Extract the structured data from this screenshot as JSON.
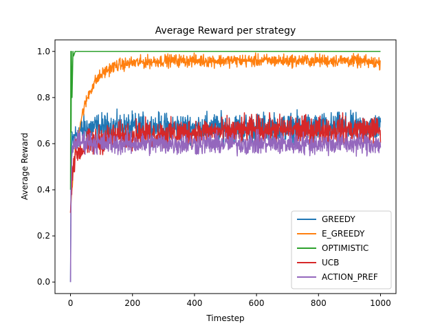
{
  "chart_data": {
    "type": "line",
    "title": "Average Reward per strategy",
    "xlabel": "Timestep",
    "ylabel": "Average Reward",
    "xlim": [
      -50,
      1050
    ],
    "ylim": [
      -0.05,
      1.05
    ],
    "xticks": [
      0,
      200,
      400,
      600,
      800,
      1000
    ],
    "xtick_labels": [
      "0",
      "200",
      "400",
      "600",
      "800",
      "1000"
    ],
    "yticks": [
      0.0,
      0.2,
      0.4,
      0.6,
      0.8,
      1.0
    ],
    "ytick_labels": [
      "0.0",
      "0.2",
      "0.4",
      "0.6",
      "0.8",
      "1.0"
    ],
    "grid": false,
    "legend_position": "lower-right",
    "series": [
      {
        "name": "GREEDY",
        "color": "#1f77b4",
        "x": [
          0,
          2,
          5,
          10,
          20,
          40,
          60,
          80,
          100,
          150,
          200,
          250,
          300,
          350,
          400,
          450,
          500,
          550,
          600,
          650,
          700,
          750,
          800,
          850,
          900,
          950,
          1000
        ],
        "y": [
          0.0,
          0.55,
          0.6,
          0.62,
          0.64,
          0.66,
          0.67,
          0.67,
          0.67,
          0.67,
          0.67,
          0.67,
          0.67,
          0.67,
          0.67,
          0.67,
          0.67,
          0.67,
          0.67,
          0.67,
          0.67,
          0.67,
          0.67,
          0.67,
          0.67,
          0.67,
          0.67
        ],
        "noise": 0.045,
        "max": 0.83
      },
      {
        "name": "E_GREEDY",
        "color": "#ff7f0e",
        "x": [
          0,
          5,
          10,
          20,
          30,
          40,
          50,
          60,
          80,
          100,
          120,
          150,
          200,
          250,
          300,
          400,
          500,
          600,
          700,
          800,
          900,
          1000
        ],
        "y": [
          0.3,
          0.42,
          0.5,
          0.6,
          0.68,
          0.74,
          0.78,
          0.82,
          0.87,
          0.9,
          0.92,
          0.94,
          0.95,
          0.955,
          0.96,
          0.96,
          0.96,
          0.96,
          0.96,
          0.96,
          0.96,
          0.95
        ],
        "noise": 0.02,
        "max": 1.0
      },
      {
        "name": "OPTIMISTIC",
        "color": "#2ca02c",
        "x": [
          0,
          1,
          2,
          3,
          5,
          8,
          10,
          15,
          1000
        ],
        "y": [
          0.4,
          1.0,
          0.65,
          1.0,
          0.8,
          1.0,
          0.98,
          1.0,
          1.0
        ],
        "noise": 0,
        "max": 1.0
      },
      {
        "name": "UCB",
        "color": "#d62728",
        "x": [
          0,
          5,
          10,
          20,
          40,
          60,
          80,
          100,
          150,
          200,
          300,
          400,
          500,
          600,
          700,
          800,
          900,
          1000
        ],
        "y": [
          0.3,
          0.48,
          0.52,
          0.56,
          0.58,
          0.6,
          0.61,
          0.62,
          0.63,
          0.64,
          0.64,
          0.65,
          0.65,
          0.66,
          0.66,
          0.66,
          0.66,
          0.66
        ],
        "noise": 0.045,
        "max": 0.78
      },
      {
        "name": "ACTION_PREF",
        "color": "#9467bd",
        "x": [
          0,
          2,
          5,
          10,
          20,
          50,
          100,
          200,
          300,
          400,
          500,
          600,
          700,
          800,
          900,
          1000
        ],
        "y": [
          0.0,
          0.4,
          0.55,
          0.6,
          0.61,
          0.61,
          0.6,
          0.6,
          0.6,
          0.6,
          0.6,
          0.6,
          0.6,
          0.6,
          0.6,
          0.6
        ],
        "noise": 0.035,
        "max": 0.72
      }
    ]
  }
}
